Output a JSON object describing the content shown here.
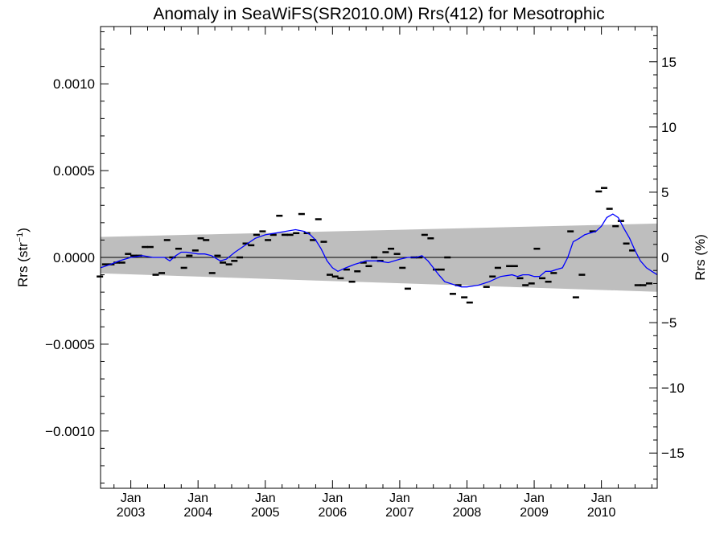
{
  "chart_data": {
    "type": "scatter",
    "title": "Anomaly in SeaWiFS(SR2010.0M) Rrs(412) for Mesotrophic",
    "ylabel_left": {
      "base": "Rrs (str",
      "sup": "−1",
      "close": ")"
    },
    "ylabel_right": "Rrs (%)",
    "x_range": [
      2002.55,
      2010.83
    ],
    "y_left_range": [
      -0.00133,
      0.00133
    ],
    "y_right_range": [
      -17.7,
      17.7
    ],
    "x_ticks": [
      {
        "x": 2003.0,
        "top": "Jan",
        "bottom": "2003"
      },
      {
        "x": 2004.0,
        "top": "Jan",
        "bottom": "2004"
      },
      {
        "x": 2005.0,
        "top": "Jan",
        "bottom": "2005"
      },
      {
        "x": 2006.0,
        "top": "Jan",
        "bottom": "2006"
      },
      {
        "x": 2007.0,
        "top": "Jan",
        "bottom": "2007"
      },
      {
        "x": 2008.0,
        "top": "Jan",
        "bottom": "2008"
      },
      {
        "x": 2009.0,
        "top": "Jan",
        "bottom": "2009"
      },
      {
        "x": 2010.0,
        "top": "Jan",
        "bottom": "2010"
      }
    ],
    "y_left_ticks": [
      {
        "v": 0.001,
        "label": "0.0010"
      },
      {
        "v": 0.0005,
        "label": "0.0005"
      },
      {
        "v": 0.0,
        "label": "0.0000"
      },
      {
        "v": -0.0005,
        "label": "−0.0005"
      },
      {
        "v": -0.001,
        "label": "−0.0010"
      }
    ],
    "y_right_ticks": [
      {
        "v": 15,
        "label": "15"
      },
      {
        "v": 10,
        "label": "10"
      },
      {
        "v": 5,
        "label": "5"
      },
      {
        "v": 0,
        "label": "0"
      },
      {
        "v": -5,
        "label": "−5"
      },
      {
        "v": -10,
        "label": "−10"
      },
      {
        "v": -15,
        "label": "−15"
      }
    ],
    "colors": {
      "band": "#bebebe",
      "running_mean": "#0000ff",
      "points": "#000000",
      "zero_line": "#000000"
    },
    "uncertainty_band": {
      "x": [
        2002.55,
        2010.83
      ],
      "upper": [
        0.000118,
        0.000195
      ],
      "lower": [
        -9.2e-05,
        -0.000198
      ]
    },
    "monthly_anomalies": [
      [
        2002.54,
        -0.00011
      ],
      [
        2002.62,
        -4e-05
      ],
      [
        2002.71,
        -4e-05
      ],
      [
        2002.79,
        -3e-05
      ],
      [
        2002.87,
        -3e-05
      ],
      [
        2002.96,
        2e-05
      ],
      [
        2003.04,
        1e-05
      ],
      [
        2003.12,
        1e-05
      ],
      [
        2003.21,
        6e-05
      ],
      [
        2003.29,
        6e-05
      ],
      [
        2003.37,
        -0.0001
      ],
      [
        2003.46,
        -9e-05
      ],
      [
        2003.54,
        0.0001
      ],
      [
        2003.62,
        0.0
      ],
      [
        2003.71,
        5e-05
      ],
      [
        2003.79,
        -6e-05
      ],
      [
        2003.87,
        1e-05
      ],
      [
        2003.96,
        4e-05
      ],
      [
        2004.04,
        0.00011
      ],
      [
        2004.12,
        0.0001
      ],
      [
        2004.21,
        -9e-05
      ],
      [
        2004.29,
        1e-05
      ],
      [
        2004.37,
        -3e-05
      ],
      [
        2004.46,
        -4e-05
      ],
      [
        2004.54,
        -2e-05
      ],
      [
        2004.62,
        0.0
      ],
      [
        2004.71,
        8e-05
      ],
      [
        2004.79,
        7e-05
      ],
      [
        2004.87,
        0.00013
      ],
      [
        2004.96,
        0.00015
      ],
      [
        2005.04,
        0.0001
      ],
      [
        2005.12,
        0.00013
      ],
      [
        2005.21,
        0.00024
      ],
      [
        2005.29,
        0.00013
      ],
      [
        2005.37,
        0.00013
      ],
      [
        2005.46,
        0.00014
      ],
      [
        2005.54,
        0.00025
      ],
      [
        2005.62,
        0.00014
      ],
      [
        2005.71,
        0.0001
      ],
      [
        2005.79,
        0.00022
      ],
      [
        2005.87,
        9e-05
      ],
      [
        2005.96,
        -0.0001
      ],
      [
        2006.04,
        -0.00011
      ],
      [
        2006.12,
        -0.00012
      ],
      [
        2006.21,
        -7e-05
      ],
      [
        2006.29,
        -0.00014
      ],
      [
        2006.37,
        -8e-05
      ],
      [
        2006.46,
        -3e-05
      ],
      [
        2006.54,
        -5e-05
      ],
      [
        2006.62,
        0.0
      ],
      [
        2006.71,
        -2e-05
      ],
      [
        2006.79,
        3e-05
      ],
      [
        2006.87,
        5e-05
      ],
      [
        2006.96,
        2e-05
      ],
      [
        2007.04,
        -6e-05
      ],
      [
        2007.12,
        -0.00018
      ],
      [
        2007.21,
        0.0
      ],
      [
        2007.29,
        0.0
      ],
      [
        2007.37,
        0.00013
      ],
      [
        2007.46,
        0.00011
      ],
      [
        2007.54,
        -7e-05
      ],
      [
        2007.62,
        -7e-05
      ],
      [
        2007.71,
        0.0
      ],
      [
        2007.79,
        -0.00021
      ],
      [
        2007.87,
        -0.00016
      ],
      [
        2007.96,
        -0.00023
      ],
      [
        2008.04,
        -0.00026
      ],
      [
        2008.29,
        -0.00017
      ],
      [
        2008.38,
        -0.00011
      ],
      [
        2008.46,
        -6e-05
      ],
      [
        2008.63,
        -5e-05
      ],
      [
        2008.71,
        -5e-05
      ],
      [
        2008.79,
        -0.00012
      ],
      [
        2008.87,
        -0.00016
      ],
      [
        2008.96,
        -0.00015
      ],
      [
        2009.04,
        5e-05
      ],
      [
        2009.12,
        -0.00012
      ],
      [
        2009.21,
        -0.00014
      ],
      [
        2009.29,
        -9e-05
      ],
      [
        2009.54,
        0.00015
      ],
      [
        2009.62,
        -0.00023
      ],
      [
        2009.71,
        -0.0001
      ],
      [
        2009.87,
        0.00015
      ],
      [
        2009.96,
        0.00038
      ],
      [
        2010.04,
        0.0004
      ],
      [
        2010.12,
        0.00028
      ],
      [
        2010.21,
        0.00018
      ],
      [
        2010.29,
        0.00021
      ],
      [
        2010.37,
        8e-05
      ],
      [
        2010.46,
        4e-05
      ],
      [
        2010.54,
        -0.00016
      ],
      [
        2010.62,
        -0.00016
      ],
      [
        2010.71,
        -0.00015
      ]
    ],
    "running_mean": [
      [
        2002.55,
        -6e-05
      ],
      [
        2002.7,
        -4e-05
      ],
      [
        2002.83,
        -2e-05
      ],
      [
        2003.0,
        0.0
      ],
      [
        2003.17,
        1e-05
      ],
      [
        2003.33,
        0.0
      ],
      [
        2003.5,
        0.0
      ],
      [
        2003.58,
        -2e-05
      ],
      [
        2003.67,
        1e-05
      ],
      [
        2003.75,
        3e-05
      ],
      [
        2003.83,
        3e-05
      ],
      [
        2004.0,
        2e-05
      ],
      [
        2004.1,
        2e-05
      ],
      [
        2004.2,
        1e-05
      ],
      [
        2004.33,
        -2e-05
      ],
      [
        2004.42,
        -1e-05
      ],
      [
        2004.55,
        3e-05
      ],
      [
        2004.7,
        7e-05
      ],
      [
        2004.85,
        0.00011
      ],
      [
        2005.0,
        0.00013
      ],
      [
        2005.15,
        0.00014
      ],
      [
        2005.3,
        0.00015
      ],
      [
        2005.45,
        0.00016
      ],
      [
        2005.58,
        0.00015
      ],
      [
        2005.67,
        0.00013
      ],
      [
        2005.75,
        0.0001
      ],
      [
        2005.83,
        5e-05
      ],
      [
        2005.92,
        -2e-05
      ],
      [
        2006.0,
        -6e-05
      ],
      [
        2006.08,
        -8e-05
      ],
      [
        2006.2,
        -6e-05
      ],
      [
        2006.33,
        -4e-05
      ],
      [
        2006.5,
        -2e-05
      ],
      [
        2006.67,
        -2e-05
      ],
      [
        2006.83,
        -3e-05
      ],
      [
        2007.0,
        -1e-05
      ],
      [
        2007.12,
        0.0
      ],
      [
        2007.25,
        0.0
      ],
      [
        2007.33,
        1e-05
      ],
      [
        2007.42,
        -2e-05
      ],
      [
        2007.5,
        -6e-05
      ],
      [
        2007.58,
        -0.0001
      ],
      [
        2007.67,
        -0.00014
      ],
      [
        2007.75,
        -0.00015
      ],
      [
        2007.83,
        -0.00016
      ],
      [
        2007.92,
        -0.00017
      ],
      [
        2008.0,
        -0.00017
      ],
      [
        2008.17,
        -0.00016
      ],
      [
        2008.33,
        -0.00014
      ],
      [
        2008.5,
        -0.00011
      ],
      [
        2008.67,
        -0.0001
      ],
      [
        2008.75,
        -0.00011
      ],
      [
        2008.83,
        -0.0001
      ],
      [
        2008.92,
        -0.0001
      ],
      [
        2009.0,
        -0.00011
      ],
      [
        2009.08,
        -0.00011
      ],
      [
        2009.17,
        -8e-05
      ],
      [
        2009.25,
        -8e-05
      ],
      [
        2009.33,
        -7e-05
      ],
      [
        2009.42,
        -6e-05
      ],
      [
        2009.5,
        0.0
      ],
      [
        2009.58,
        9e-05
      ],
      [
        2009.67,
        0.00011
      ],
      [
        2009.75,
        0.00013
      ],
      [
        2009.83,
        0.00014
      ],
      [
        2009.92,
        0.00015
      ],
      [
        2010.0,
        0.00018
      ],
      [
        2010.08,
        0.00023
      ],
      [
        2010.17,
        0.00025
      ],
      [
        2010.25,
        0.00023
      ],
      [
        2010.33,
        0.00017
      ],
      [
        2010.42,
        0.00011
      ],
      [
        2010.5,
        4e-05
      ],
      [
        2010.58,
        -2e-05
      ],
      [
        2010.67,
        -6e-05
      ],
      [
        2010.75,
        -8e-05
      ],
      [
        2010.83,
        -0.0001
      ]
    ]
  }
}
